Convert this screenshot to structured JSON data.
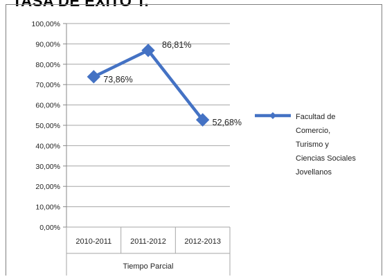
{
  "header": {
    "title": "TASA DE EXITO T."
  },
  "chart_data": {
    "type": "line",
    "title": "",
    "categories": [
      "2010-2011",
      "2011-2012",
      "2012-2013"
    ],
    "series": [
      {
        "name": "Facultad de Comercio, Turismo y Ciencias Sociales Jovellanos",
        "values": [
          73.86,
          86.81,
          52.68
        ],
        "data_labels": [
          "73,86%",
          "86,81%",
          "52,68%"
        ],
        "color": "#4472C4",
        "marker": "diamond"
      }
    ],
    "xlabel": "Tiempo Parcial",
    "ylabel": "",
    "ylim": [
      0,
      100
    ],
    "y_ticks": [
      0,
      10,
      20,
      30,
      40,
      50,
      60,
      70,
      80,
      90,
      100
    ],
    "y_tick_labels": [
      "0,00%",
      "10,00%",
      "20,00%",
      "30,00%",
      "40,00%",
      "50,00%",
      "60,00%",
      "70,00%",
      "80,00%",
      "90,00%",
      "100,00%"
    ],
    "grid": true,
    "legend": {
      "position": "right",
      "lines": [
        "Facultad de",
        "Comercio,",
        "Turismo y",
        "Ciencias Sociales",
        "Jovellanos"
      ]
    }
  }
}
